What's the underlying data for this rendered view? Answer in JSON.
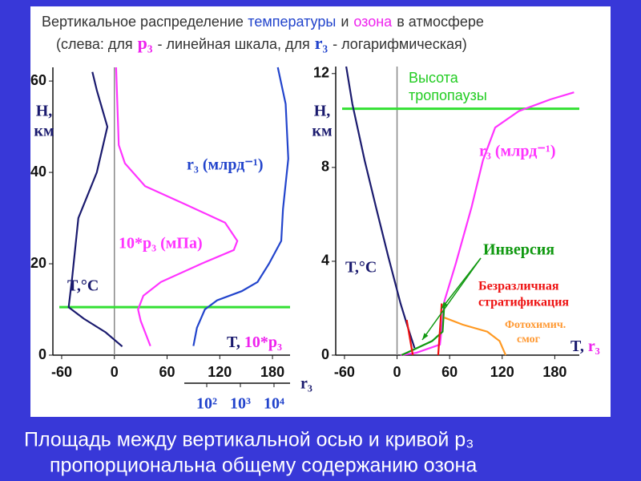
{
  "header": {
    "line1": [
      {
        "text": "Вертикальное распределение",
        "color": "#333333"
      },
      {
        "text": "температуры",
        "color": "#2244cc"
      },
      {
        "text": "и",
        "color": "#333333"
      },
      {
        "text": "озона",
        "color": "#ee22ee"
      },
      {
        "text": "в атмосфере",
        "color": "#333333"
      }
    ],
    "line2": [
      {
        "text": "(слева: для",
        "color": "#333333"
      },
      {
        "text": "p₃",
        "color": "#ee22ee"
      },
      {
        "text": "- линейная шкала, для",
        "color": "#333333"
      },
      {
        "text": "r₃",
        "color": "#2244cc"
      },
      {
        "text": "- логарифмическая)",
        "color": "#333333"
      }
    ]
  },
  "chart_data": [
    {
      "type": "line",
      "ylabel": [
        "H,",
        "км"
      ],
      "xlabel": [
        {
          "text": "T,",
          "color": "#1a1a6e"
        },
        {
          "text": "10*p₃",
          "color": "#ee22ee"
        }
      ],
      "x2label": "r₃",
      "xlim": [
        -70,
        200
      ],
      "xticks": [
        -60,
        0,
        60,
        120,
        180
      ],
      "ylim": [
        0,
        63
      ],
      "yticks": [
        0,
        20,
        40,
        60
      ],
      "x2lim": [
        21.5,
        30000
      ],
      "x2scale": "log",
      "x2ticks": [
        {
          "value": 100,
          "label": "10²"
        },
        {
          "value": 1000,
          "label": "10³"
        },
        {
          "value": 10000,
          "label": "10⁴"
        }
      ],
      "zero_line": true,
      "hlines": [
        {
          "y": 10.5,
          "color": "#33e033"
        }
      ],
      "series": [
        {
          "name": "T,°C",
          "color": "#1a1a6e",
          "x": [
            9,
            -10,
            -35,
            -52,
            -48,
            -41,
            -20,
            -8,
            -20,
            -25
          ],
          "values": [
            1.9,
            5,
            8,
            10.5,
            17,
            30,
            40,
            50,
            58,
            62
          ]
        },
        {
          "name": "10*p₃ (мПа)",
          "color": "#ff33ff",
          "x": [
            41,
            30,
            27,
            33,
            53,
            99,
            136,
            140,
            126,
            81,
            35,
            12,
            5,
            2
          ],
          "values": [
            2,
            7.5,
            10,
            13,
            16,
            20,
            23,
            25,
            29,
            33,
            37,
            42,
            46,
            63
          ]
        },
        {
          "name": "r₃ (млрд⁻¹)",
          "color": "#2244cc",
          "x": [
            90,
            94,
            103,
            117,
            145,
            163,
            176,
            190,
            192,
            198,
            195,
            186
          ],
          "values": [
            2,
            6,
            10,
            12,
            14,
            16,
            20,
            25,
            32,
            43,
            55,
            63
          ]
        }
      ]
    },
    {
      "type": "line",
      "ylabel": [
        "H,",
        "км"
      ],
      "xlabel": [
        {
          "text": "T,",
          "color": "#1a1a6e"
        },
        {
          "text": "r₃",
          "color": "#ee22ee"
        }
      ],
      "xlim": [
        -70,
        208
      ],
      "xticks": [
        -60,
        0,
        60,
        120,
        180
      ],
      "ylim": [
        0,
        12.3
      ],
      "yticks": [
        0,
        4,
        8,
        12
      ],
      "zero_line": true,
      "hlines": [
        {
          "y": 10.5,
          "color": "#33e033"
        }
      ],
      "annotations": [
        {
          "lines": [
            "Высота",
            "тропопаузы"
          ],
          "color": "#22cc22"
        },
        {
          "lines": [
            "Безразличная",
            "стратификация"
          ],
          "color": "#ee1111"
        },
        {
          "lines": [
            "Фотохимич.",
            "смог"
          ],
          "color": "#ff9933"
        }
      ],
      "series": [
        {
          "name": "T,°C",
          "color": "#1a1a6e",
          "x": [
            -58,
            -51,
            -37,
            -24,
            -10,
            4,
            13,
            20
          ],
          "values": [
            12.3,
            10.7,
            8.3,
            6.3,
            4.2,
            2.2,
            1.1,
            0.3
          ]
        },
        {
          "name": "r₃ (млрд⁻¹)",
          "color": "#ff33ff",
          "x": [
            4,
            22,
            49,
            52,
            54,
            67,
            85,
            98,
            112,
            139,
            175,
            202
          ],
          "values": [
            0,
            0.1,
            0.45,
            1.5,
            2.3,
            3.9,
            6.3,
            8.3,
            9.7,
            10.4,
            10.9,
            11.2
          ]
        },
        {
          "name": "Инверсия",
          "color": "#119911",
          "x": [
            5,
            17,
            40,
            52,
            54
          ],
          "values": [
            0,
            0.2,
            0.6,
            1,
            2.2
          ]
        },
        {
          "color": "#ee1111",
          "x": [
            11,
            18,
            null,
            51,
            47
          ],
          "values": [
            1.5,
            0,
            null,
            2.2,
            0
          ]
        },
        {
          "color": "#ff9922",
          "x": [
            54,
            75,
            103,
            117,
            124
          ],
          "values": [
            1.6,
            1.3,
            1,
            0.6,
            0
          ]
        }
      ]
    }
  ],
  "footer": [
    "Площадь между вертикальной осью и кривой p₃",
    "пропорциональна общему содержанию озона"
  ]
}
